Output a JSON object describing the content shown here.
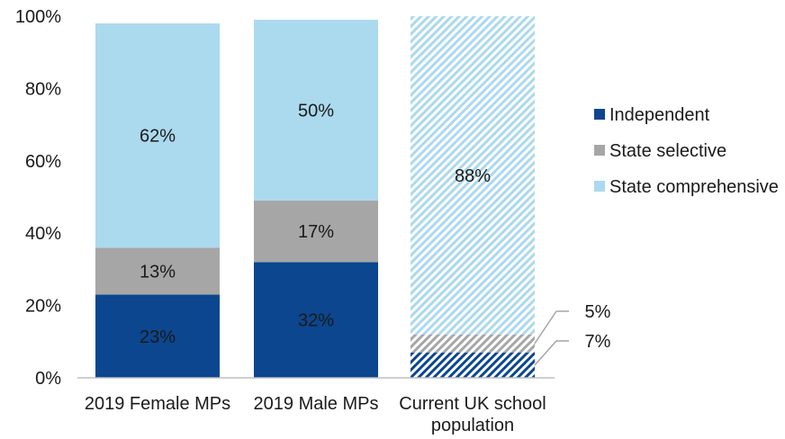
{
  "chart_data": {
    "type": "bar",
    "stacked": true,
    "title": "",
    "xlabel": "",
    "ylabel": "",
    "ylim": [
      0,
      100
    ],
    "y_ticks": [
      "0%",
      "20%",
      "40%",
      "60%",
      "80%",
      "100%"
    ],
    "y_tick_values": [
      0,
      20,
      40,
      60,
      80,
      100
    ],
    "grid": false,
    "legend_position": "right",
    "categories": [
      [
        "2019 Female MPs"
      ],
      [
        "2019 Male MPs"
      ],
      [
        "Current UK school",
        "population"
      ]
    ],
    "series": [
      {
        "name": "Independent",
        "color": "#0b468f",
        "values": [
          23,
          32,
          7
        ],
        "labels": [
          "23%",
          "32%",
          "7%"
        ]
      },
      {
        "name": "State selective",
        "color": "#a6a6a6",
        "values": [
          13,
          17,
          5
        ],
        "labels": [
          "13%",
          "17%",
          "5%"
        ]
      },
      {
        "name": "State comprehensive",
        "color": "#abd9ee",
        "values": [
          62,
          50,
          88
        ],
        "labels": [
          "62%",
          "50%",
          "88%"
        ]
      }
    ],
    "hatched_bars": [
      2
    ],
    "outside_labels": {
      "bar": 2,
      "series": [
        0,
        1
      ]
    }
  }
}
